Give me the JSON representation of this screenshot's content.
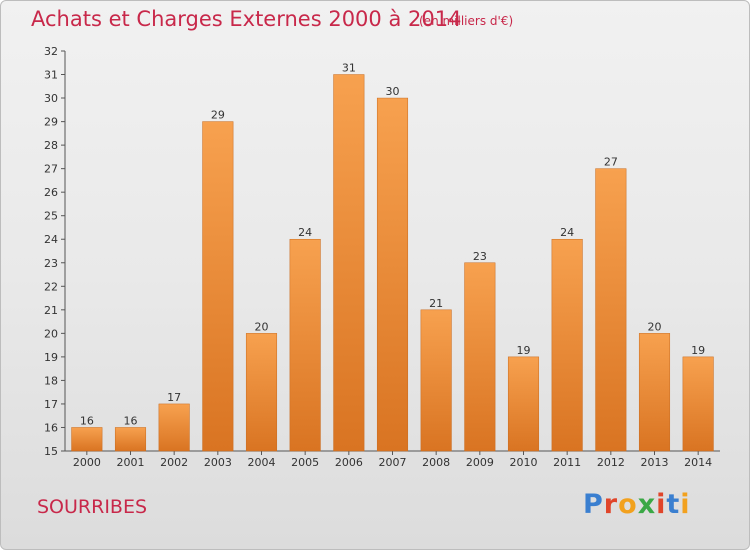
{
  "header": {
    "title": "Achats et Charges Externes 2000 à 2014",
    "unit": "(en milliers d'€)"
  },
  "footer": {
    "commune": "SOURRIBES",
    "logo_text": "Proxiti",
    "logo_colors": [
      "#3a7fd0",
      "#e0452a",
      "#f2a11e",
      "#3aa845",
      "#e0452a",
      "#3a7fd0",
      "#f2a11e"
    ]
  },
  "chart_data": {
    "type": "bar",
    "title": "Achats et Charges Externes 2000 à 2014",
    "subtitle": "(en milliers d'€)",
    "xlabel": "",
    "ylabel": "",
    "categories": [
      "2000",
      "2001",
      "2002",
      "2003",
      "2004",
      "2005",
      "2006",
      "2007",
      "2008",
      "2009",
      "2010",
      "2011",
      "2012",
      "2013",
      "2014"
    ],
    "values": [
      16,
      16,
      17,
      29,
      20,
      24,
      31,
      30,
      21,
      23,
      19,
      24,
      27,
      20,
      19
    ],
    "ylim": [
      15,
      32
    ],
    "yticks": [
      15,
      16,
      17,
      18,
      19,
      20,
      21,
      22,
      23,
      24,
      25,
      26,
      27,
      28,
      29,
      30,
      31,
      32
    ],
    "grid": false,
    "legend": "none",
    "bar_color_top": "#f7a14f",
    "bar_color_bottom": "#d97422"
  }
}
